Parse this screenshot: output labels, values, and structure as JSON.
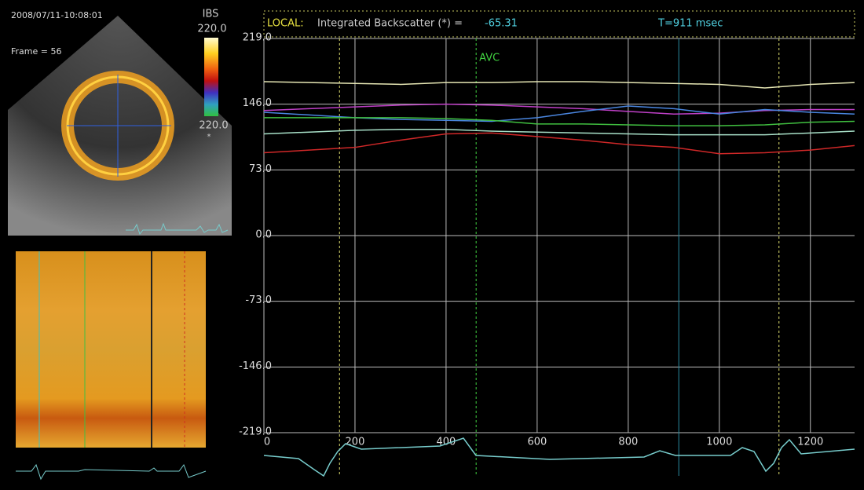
{
  "ui": {
    "timestamp": "2008/07/11-10:08:01",
    "frame": "Frame = 56",
    "colorbar_title": "IBS",
    "colorbar_top": "220.0",
    "colorbar_bottom": "220.0",
    "colorbar_unit": "*"
  },
  "chart_data": {
    "type": "line",
    "header": {
      "mode": "LOCAL:",
      "measure": "Integrated Backscatter (*) =",
      "value": -65.31,
      "time": "T=911 msec"
    },
    "x": [
      0,
      100,
      200,
      300,
      400,
      500,
      600,
      700,
      800,
      900,
      1000,
      1100,
      1200,
      1297
    ],
    "xlim": [
      0,
      1297
    ],
    "xticks": [
      0,
      200,
      400,
      600,
      800,
      1000,
      1200
    ],
    "ylim": [
      -219,
      219
    ],
    "yticks": [
      {
        "value": 219,
        "label": "219.0"
      },
      {
        "value": 146,
        "label": "146.0"
      },
      {
        "value": 73,
        "label": "73.0"
      },
      {
        "value": 0,
        "label": "0.0"
      },
      {
        "value": -73,
        "label": "-73.0"
      },
      {
        "value": -146,
        "label": "-146.0"
      },
      {
        "value": -219,
        "label": "-219.0"
      }
    ],
    "grid": true,
    "series": [
      {
        "color": "#e6e6b4",
        "values": [
          171,
          170,
          169,
          168,
          170,
          170,
          171,
          171,
          170,
          169,
          168,
          164,
          168,
          170
        ]
      },
      {
        "color": "#c040c8",
        "values": [
          139,
          141,
          143,
          145,
          146,
          145,
          143,
          141,
          138,
          135,
          136,
          139,
          140,
          140
        ]
      },
      {
        "color": "#4a86e0",
        "values": [
          137,
          134,
          131,
          129,
          128,
          127,
          131,
          138,
          144,
          141,
          135,
          140,
          137,
          135
        ]
      },
      {
        "color": "#40c040",
        "values": [
          131,
          131,
          131,
          131,
          130,
          128,
          124,
          124,
          123,
          122,
          122,
          123,
          126,
          127
        ]
      },
      {
        "color": "#a8e0c8",
        "values": [
          113,
          115,
          117,
          118,
          118,
          116,
          115,
          114,
          113,
          112,
          112,
          112,
          114,
          116
        ]
      },
      {
        "color": "#d02828",
        "values": [
          92,
          95,
          98,
          106,
          113,
          114,
          110,
          106,
          101,
          98,
          91,
          92,
          95,
          100
        ]
      }
    ],
    "markers": [
      {
        "x": 166,
        "color": "#e0e070",
        "style": "dashed"
      },
      {
        "x": 466,
        "color": "#40d040",
        "style": "dashed",
        "label": "AVC"
      },
      {
        "x": 911,
        "color": "#2a8aa0",
        "style": "solid"
      },
      {
        "x": 1131,
        "color": "#e0e070",
        "style": "dashed"
      }
    ]
  }
}
